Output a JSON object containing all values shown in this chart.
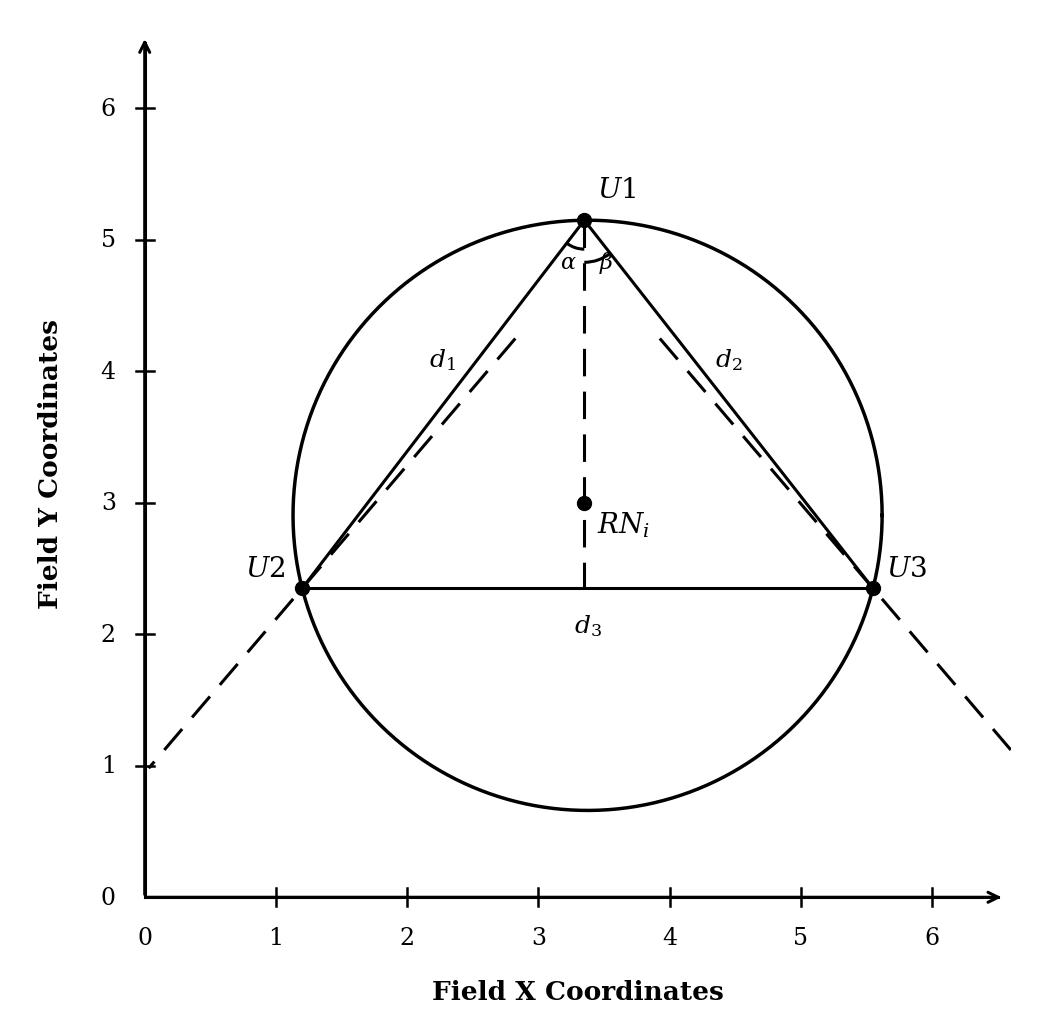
{
  "U1": [
    3.35,
    5.15
  ],
  "U2": [
    1.2,
    2.35
  ],
  "U3": [
    5.55,
    2.35
  ],
  "RNi": [
    3.35,
    3.0
  ],
  "xlim": [
    -0.15,
    6.6
  ],
  "ylim": [
    -0.15,
    6.6
  ],
  "xlabel": "Field X Coordinates",
  "ylabel": "Field Y Coordinates",
  "xticks": [
    0,
    1,
    2,
    3,
    4,
    5,
    6
  ],
  "yticks": [
    0,
    1,
    2,
    3,
    4,
    5,
    6
  ],
  "node_color": "black",
  "line_color": "black",
  "dashed_color": "black",
  "background": "white",
  "label_U1": "U1",
  "label_U2": "U2",
  "label_U3": "U3",
  "label_d1": "d1",
  "label_d2": "d2",
  "label_d3": "d3",
  "label_alpha": "a",
  "label_beta": "B",
  "arc_alpha_r": 0.22,
  "arc_beta_r": 0.32,
  "dashes_lw": 2.2,
  "solid_lw": 2.2,
  "circle_lw": 2.5
}
